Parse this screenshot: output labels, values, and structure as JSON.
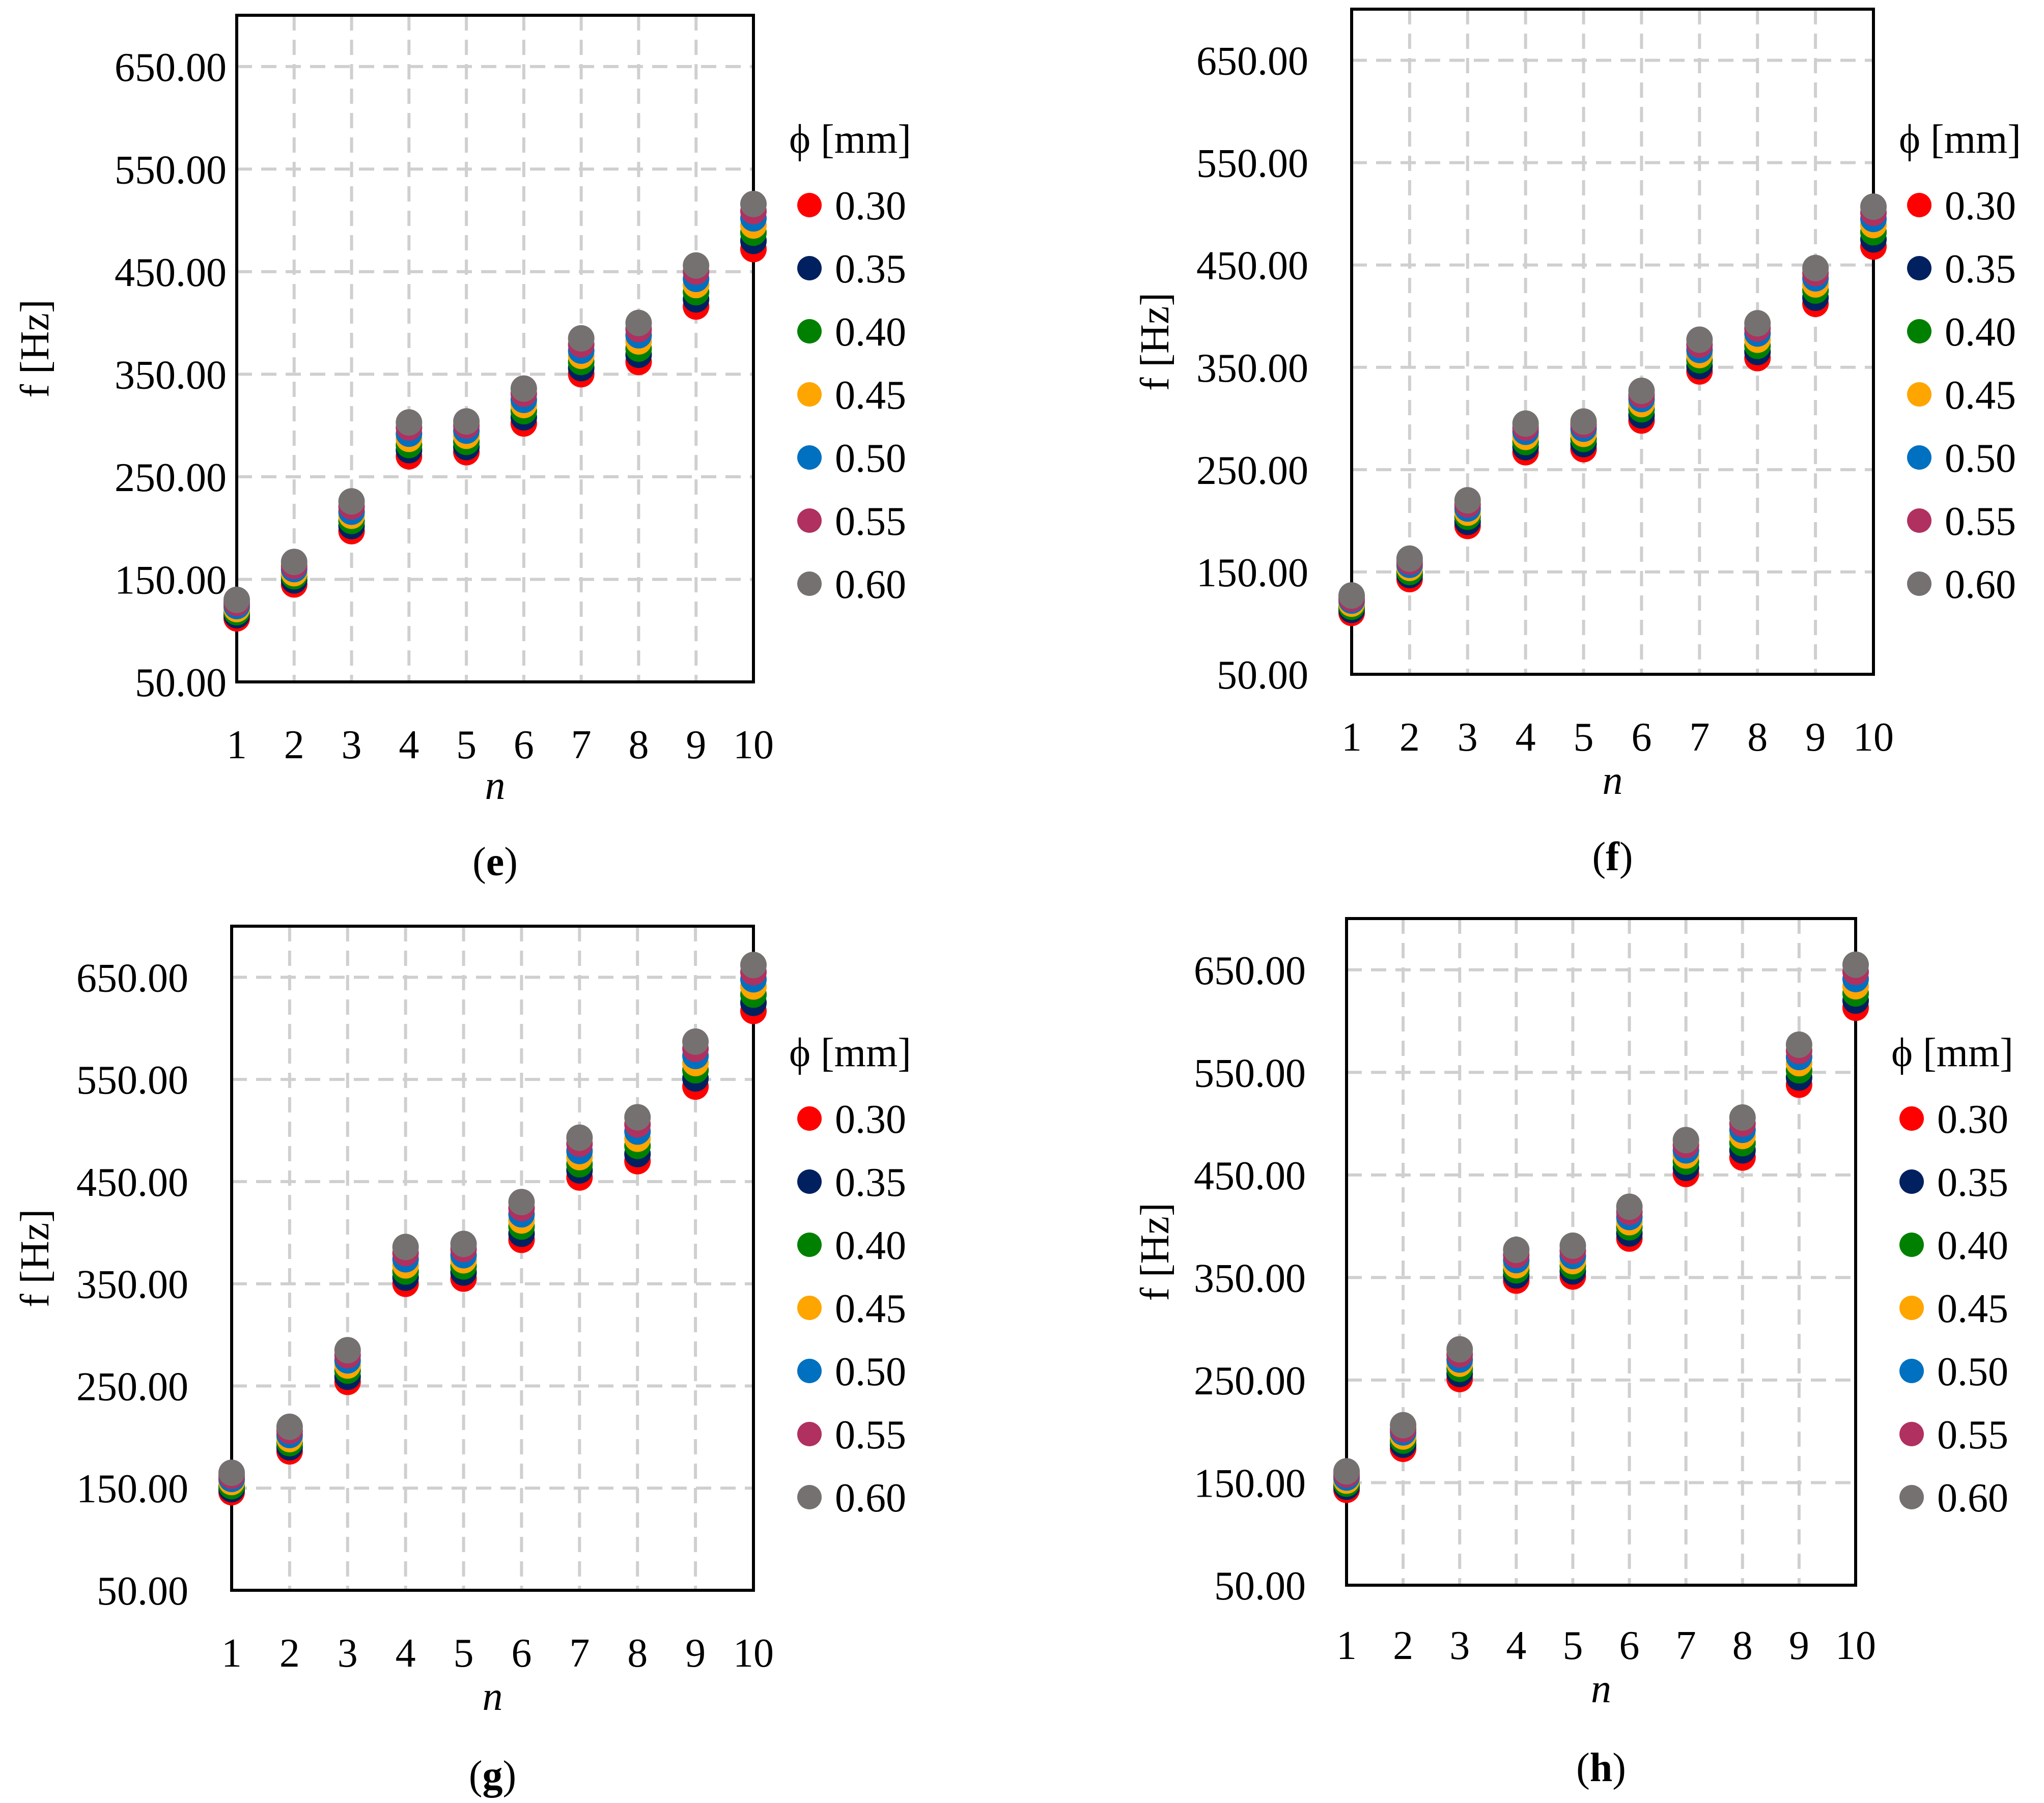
{
  "figure": {
    "legend_title": "ϕ [mm]",
    "series_names": [
      "0.30",
      "0.35",
      "0.40",
      "0.45",
      "0.50",
      "0.55",
      "0.60"
    ],
    "series_colors": [
      "#ff0000",
      "#002060",
      "#008000",
      "#ffa500",
      "#0070c0",
      "#b03060",
      "#767171"
    ]
  },
  "chart_data": [
    {
      "type": "scatter",
      "panel": "e",
      "xlabel": "n",
      "ylabel": "f [Hz]",
      "x": [
        1,
        2,
        3,
        4,
        5,
        6,
        7,
        8,
        9,
        10
      ],
      "ylim": [
        50,
        700
      ],
      "yticks": [
        "50.00",
        "150.00",
        "250.00",
        "350.00",
        "450.00",
        "550.00",
        "650.00"
      ],
      "xticks": [
        "1",
        "2",
        "3",
        "4",
        "5",
        "6",
        "7",
        "8",
        "9",
        "10"
      ],
      "legend_position": "right",
      "series": [
        {
          "name": "0.30",
          "values": [
            112,
            145,
            197,
            270,
            274,
            302,
            350,
            362,
            416,
            472
          ]
        },
        {
          "name": "0.35",
          "values": [
            115,
            149,
            202,
            276,
            279,
            308,
            356,
            369,
            423,
            480
          ]
        },
        {
          "name": "0.40",
          "values": [
            118,
            153,
            207,
            281,
            284,
            314,
            362,
            375,
            430,
            488
          ]
        },
        {
          "name": "0.45",
          "values": [
            121,
            156,
            212,
            287,
            290,
            320,
            368,
            382,
            437,
            495
          ]
        },
        {
          "name": "0.50",
          "values": [
            124,
            160,
            216,
            292,
            295,
            325,
            373,
            388,
            443,
            502
          ]
        },
        {
          "name": "0.55",
          "values": [
            127,
            163,
            221,
            298,
            300,
            331,
            379,
            394,
            450,
            509
          ]
        },
        {
          "name": "0.60",
          "values": [
            130,
            167,
            226,
            303,
            304,
            336,
            385,
            400,
            456,
            516
          ]
        }
      ]
    },
    {
      "type": "scatter",
      "panel": "f",
      "xlabel": "n",
      "ylabel": "f [Hz]",
      "x": [
        1,
        2,
        3,
        4,
        5,
        6,
        7,
        8,
        9,
        10
      ],
      "ylim": [
        50,
        700
      ],
      "yticks": [
        "50.00",
        "150.00",
        "250.00",
        "350.00",
        "450.00",
        "550.00",
        "650.00"
      ],
      "xticks": [
        "1",
        "2",
        "3",
        "4",
        "5",
        "6",
        "7",
        "8",
        "9",
        "10"
      ],
      "legend_position": "right",
      "series": [
        {
          "name": "0.30",
          "values": [
            110,
            143,
            195,
            267,
            270,
            298,
            346,
            359,
            412,
            468
          ]
        },
        {
          "name": "0.35",
          "values": [
            113,
            147,
            199,
            272,
            275,
            303,
            351,
            365,
            418,
            475
          ]
        },
        {
          "name": "0.40",
          "values": [
            116,
            150,
            204,
            277,
            280,
            309,
            357,
            371,
            425,
            482
          ]
        },
        {
          "name": "0.45",
          "values": [
            119,
            154,
            208,
            282,
            285,
            314,
            362,
            377,
            431,
            489
          ]
        },
        {
          "name": "0.50",
          "values": [
            122,
            157,
            212,
            287,
            290,
            319,
            367,
            383,
            437,
            495
          ]
        },
        {
          "name": "0.55",
          "values": [
            124,
            160,
            216,
            291,
            294,
            323,
            372,
            388,
            442,
            501
          ]
        },
        {
          "name": "0.60",
          "values": [
            127,
            163,
            220,
            295,
            297,
            327,
            377,
            393,
            447,
            507
          ]
        }
      ]
    },
    {
      "type": "scatter",
      "panel": "g",
      "xlabel": "n",
      "ylabel": "f [Hz]",
      "x": [
        1,
        2,
        3,
        4,
        5,
        6,
        7,
        8,
        9,
        10
      ],
      "ylim": [
        50,
        700
      ],
      "yticks": [
        "50.00",
        "150.00",
        "250.00",
        "350.00",
        "450.00",
        "550.00",
        "650.00"
      ],
      "xticks": [
        "1",
        "2",
        "3",
        "4",
        "5",
        "6",
        "7",
        "8",
        "9",
        "10"
      ],
      "legend_position": "right",
      "series": [
        {
          "name": "0.30",
          "values": [
            146,
            186,
            254,
            350,
            355,
            393,
            454,
            470,
            543,
            617
          ]
        },
        {
          "name": "0.35",
          "values": [
            149,
            190,
            259,
            356,
            361,
            399,
            461,
            477,
            551,
            625
          ]
        },
        {
          "name": "0.40",
          "values": [
            152,
            194,
            265,
            362,
            367,
            406,
            467,
            485,
            559,
            633
          ]
        },
        {
          "name": "0.45",
          "values": [
            156,
            198,
            270,
            368,
            373,
            412,
            474,
            492,
            566,
            641
          ]
        },
        {
          "name": "0.50",
          "values": [
            159,
            202,
            275,
            374,
            378,
            418,
            480,
            499,
            573,
            648
          ]
        },
        {
          "name": "0.55",
          "values": [
            162,
            206,
            280,
            380,
            384,
            424,
            487,
            506,
            580,
            655
          ]
        },
        {
          "name": "0.60",
          "values": [
            165,
            210,
            285,
            386,
            389,
            430,
            493,
            513,
            587,
            662
          ]
        }
      ]
    },
    {
      "type": "scatter",
      "panel": "h",
      "xlabel": "n",
      "ylabel": "f [Hz]",
      "x": [
        1,
        2,
        3,
        4,
        5,
        6,
        7,
        8,
        9,
        10
      ],
      "ylim": [
        50,
        700
      ],
      "yticks": [
        "50.00",
        "150.00",
        "250.00",
        "350.00",
        "450.00",
        "550.00",
        "650.00"
      ],
      "xticks": [
        "1",
        "2",
        "3",
        "4",
        "5",
        "6",
        "7",
        "8",
        "9",
        "10"
      ],
      "legend_position": "right",
      "series": [
        {
          "name": "0.30",
          "values": [
            143,
            183,
            251,
            347,
            351,
            388,
            451,
            467,
            538,
            613
          ]
        },
        {
          "name": "0.35",
          "values": [
            146,
            187,
            256,
            352,
            356,
            393,
            457,
            474,
            545,
            620
          ]
        },
        {
          "name": "0.40",
          "values": [
            149,
            191,
            261,
            357,
            361,
            399,
            463,
            481,
            552,
            627
          ]
        },
        {
          "name": "0.45",
          "values": [
            152,
            195,
            266,
            362,
            366,
            404,
            469,
            488,
            559,
            634
          ]
        },
        {
          "name": "0.50",
          "values": [
            155,
            199,
            270,
            367,
            371,
            409,
            474,
            494,
            565,
            641
          ]
        },
        {
          "name": "0.55",
          "values": [
            158,
            202,
            275,
            372,
            376,
            414,
            479,
            500,
            571,
            648
          ]
        },
        {
          "name": "0.60",
          "values": [
            161,
            206,
            280,
            377,
            381,
            419,
            484,
            506,
            577,
            655
          ]
        }
      ]
    }
  ]
}
